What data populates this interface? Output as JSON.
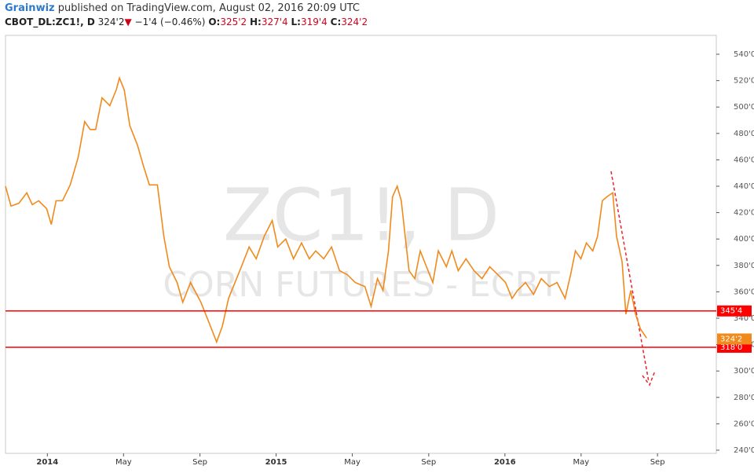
{
  "header": {
    "author": "Grainwiz",
    "published": "published on TradingView.com, August 02, 2016 20:09 UTC",
    "symbol": "CBOT_DL:ZC1!, D",
    "last": "324'2",
    "direction": "▼",
    "change": "−1'4 (−0.46%)",
    "ohlc": [
      {
        "label": "O:",
        "value": "325'2"
      },
      {
        "label": "H:",
        "value": "327'4"
      },
      {
        "label": "L:",
        "value": "319'4"
      },
      {
        "label": "C:",
        "value": "324'2"
      }
    ]
  },
  "chart_data": {
    "type": "line",
    "watermark": "ZC1!, D",
    "subtitle": "CORN FUTURES - ECBT",
    "color": "#f08a1c",
    "x": [
      2013.817,
      2013.841,
      2013.875,
      2013.91,
      2013.934,
      2013.962,
      2013.997,
      2014.017,
      2014.038,
      2014.066,
      2014.1,
      2014.135,
      2014.163,
      2014.187,
      2014.211,
      2014.239,
      2014.273,
      2014.301,
      2014.315,
      2014.336,
      2014.36,
      2014.394,
      2014.419,
      2014.446,
      2014.481,
      2014.509,
      2014.533,
      2014.567,
      2014.592,
      2014.626,
      2014.671,
      2014.706,
      2014.74,
      2014.765,
      2014.792,
      2014.82,
      2014.848,
      2014.882,
      2014.913,
      2014.948,
      2014.983,
      2015.007,
      2015.042,
      2015.076,
      2015.111,
      2015.145,
      2015.173,
      2015.208,
      2015.242,
      2015.277,
      2015.311,
      2015.346,
      2015.388,
      2015.415,
      2015.443,
      2015.467,
      2015.491,
      2015.509,
      2015.529,
      2015.547,
      2015.564,
      2015.581,
      2015.606,
      2015.63,
      2015.657,
      2015.685,
      2015.709,
      2015.744,
      2015.768,
      2015.796,
      2015.83,
      2015.865,
      2015.9,
      2015.934,
      2015.969,
      2016.003,
      2016.031,
      2016.055,
      2016.09,
      2016.125,
      2016.159,
      2016.194,
      2016.228,
      2016.263,
      2016.287,
      2016.308,
      2016.332,
      2016.356,
      2016.384,
      2016.405,
      2016.426,
      2016.446,
      2016.471,
      2016.488,
      2016.512,
      2016.529,
      2016.55,
      2016.571,
      2016.592,
      2016.619
    ],
    "values": [
      440,
      425,
      427,
      435,
      426,
      429,
      423,
      411,
      429,
      429,
      441,
      462,
      489,
      483,
      483,
      507,
      501,
      513,
      522,
      513,
      486,
      471,
      456,
      441,
      441,
      402,
      379,
      367,
      352,
      367,
      352,
      337,
      322,
      334,
      355,
      367,
      379,
      394,
      385,
      402,
      414,
      394,
      400,
      385,
      397,
      385,
      391,
      385,
      394,
      376,
      373,
      367,
      364,
      349,
      370,
      361,
      391,
      432,
      440,
      429,
      402,
      376,
      370,
      391,
      379,
      367,
      391,
      379,
      391,
      376,
      385,
      376,
      370,
      379,
      373,
      367,
      355,
      361,
      367,
      358,
      370,
      364,
      367,
      355,
      373,
      391,
      385,
      397,
      391,
      402,
      429,
      432,
      435,
      402,
      383,
      343,
      361,
      343,
      332,
      325
    ],
    "xlim": [
      2013.817,
      2016.924
    ],
    "ylim": [
      237.6,
      554.3
    ],
    "xticks": [
      2014,
      {
        "value": 2014.333,
        "label": "May"
      },
      {
        "value": 2014.667,
        "label": "Sep"
      },
      2015,
      {
        "value": 2015.333,
        "label": "May"
      },
      {
        "value": 2015.667,
        "label": "Sep"
      },
      2016,
      {
        "value": 2016.333,
        "label": "May"
      },
      {
        "value": 2016.667,
        "label": "Sep"
      }
    ],
    "yticks": [
      {
        "value": 240,
        "label": "240'0"
      },
      {
        "value": 260,
        "label": "260'0"
      },
      {
        "value": 280,
        "label": "280'0"
      },
      {
        "value": 300,
        "label": "300'0"
      },
      {
        "value": 320,
        "label": "320'0"
      },
      {
        "value": 340,
        "label": "340'0"
      },
      {
        "value": 360,
        "label": "360'0"
      },
      {
        "value": 380,
        "label": "380'0"
      },
      {
        "value": 400,
        "label": "400'0"
      },
      {
        "value": 420,
        "label": "420'0"
      },
      {
        "value": 440,
        "label": "440'0"
      },
      {
        "value": 460,
        "label": "460'0"
      },
      {
        "value": 480,
        "label": "480'0"
      },
      {
        "value": 500,
        "label": "500'0"
      },
      {
        "value": 520,
        "label": "520'0"
      },
      {
        "value": 540,
        "label": "540'0"
      }
    ],
    "hlines": [
      {
        "value": 345.5,
        "label": "345'4",
        "color": "#ff0000"
      },
      {
        "value": 318,
        "label": "318'0",
        "color": "#ff0000"
      }
    ],
    "last_price": {
      "value": 324.25,
      "label": "324'2",
      "color": "#f08a1c"
    }
  }
}
